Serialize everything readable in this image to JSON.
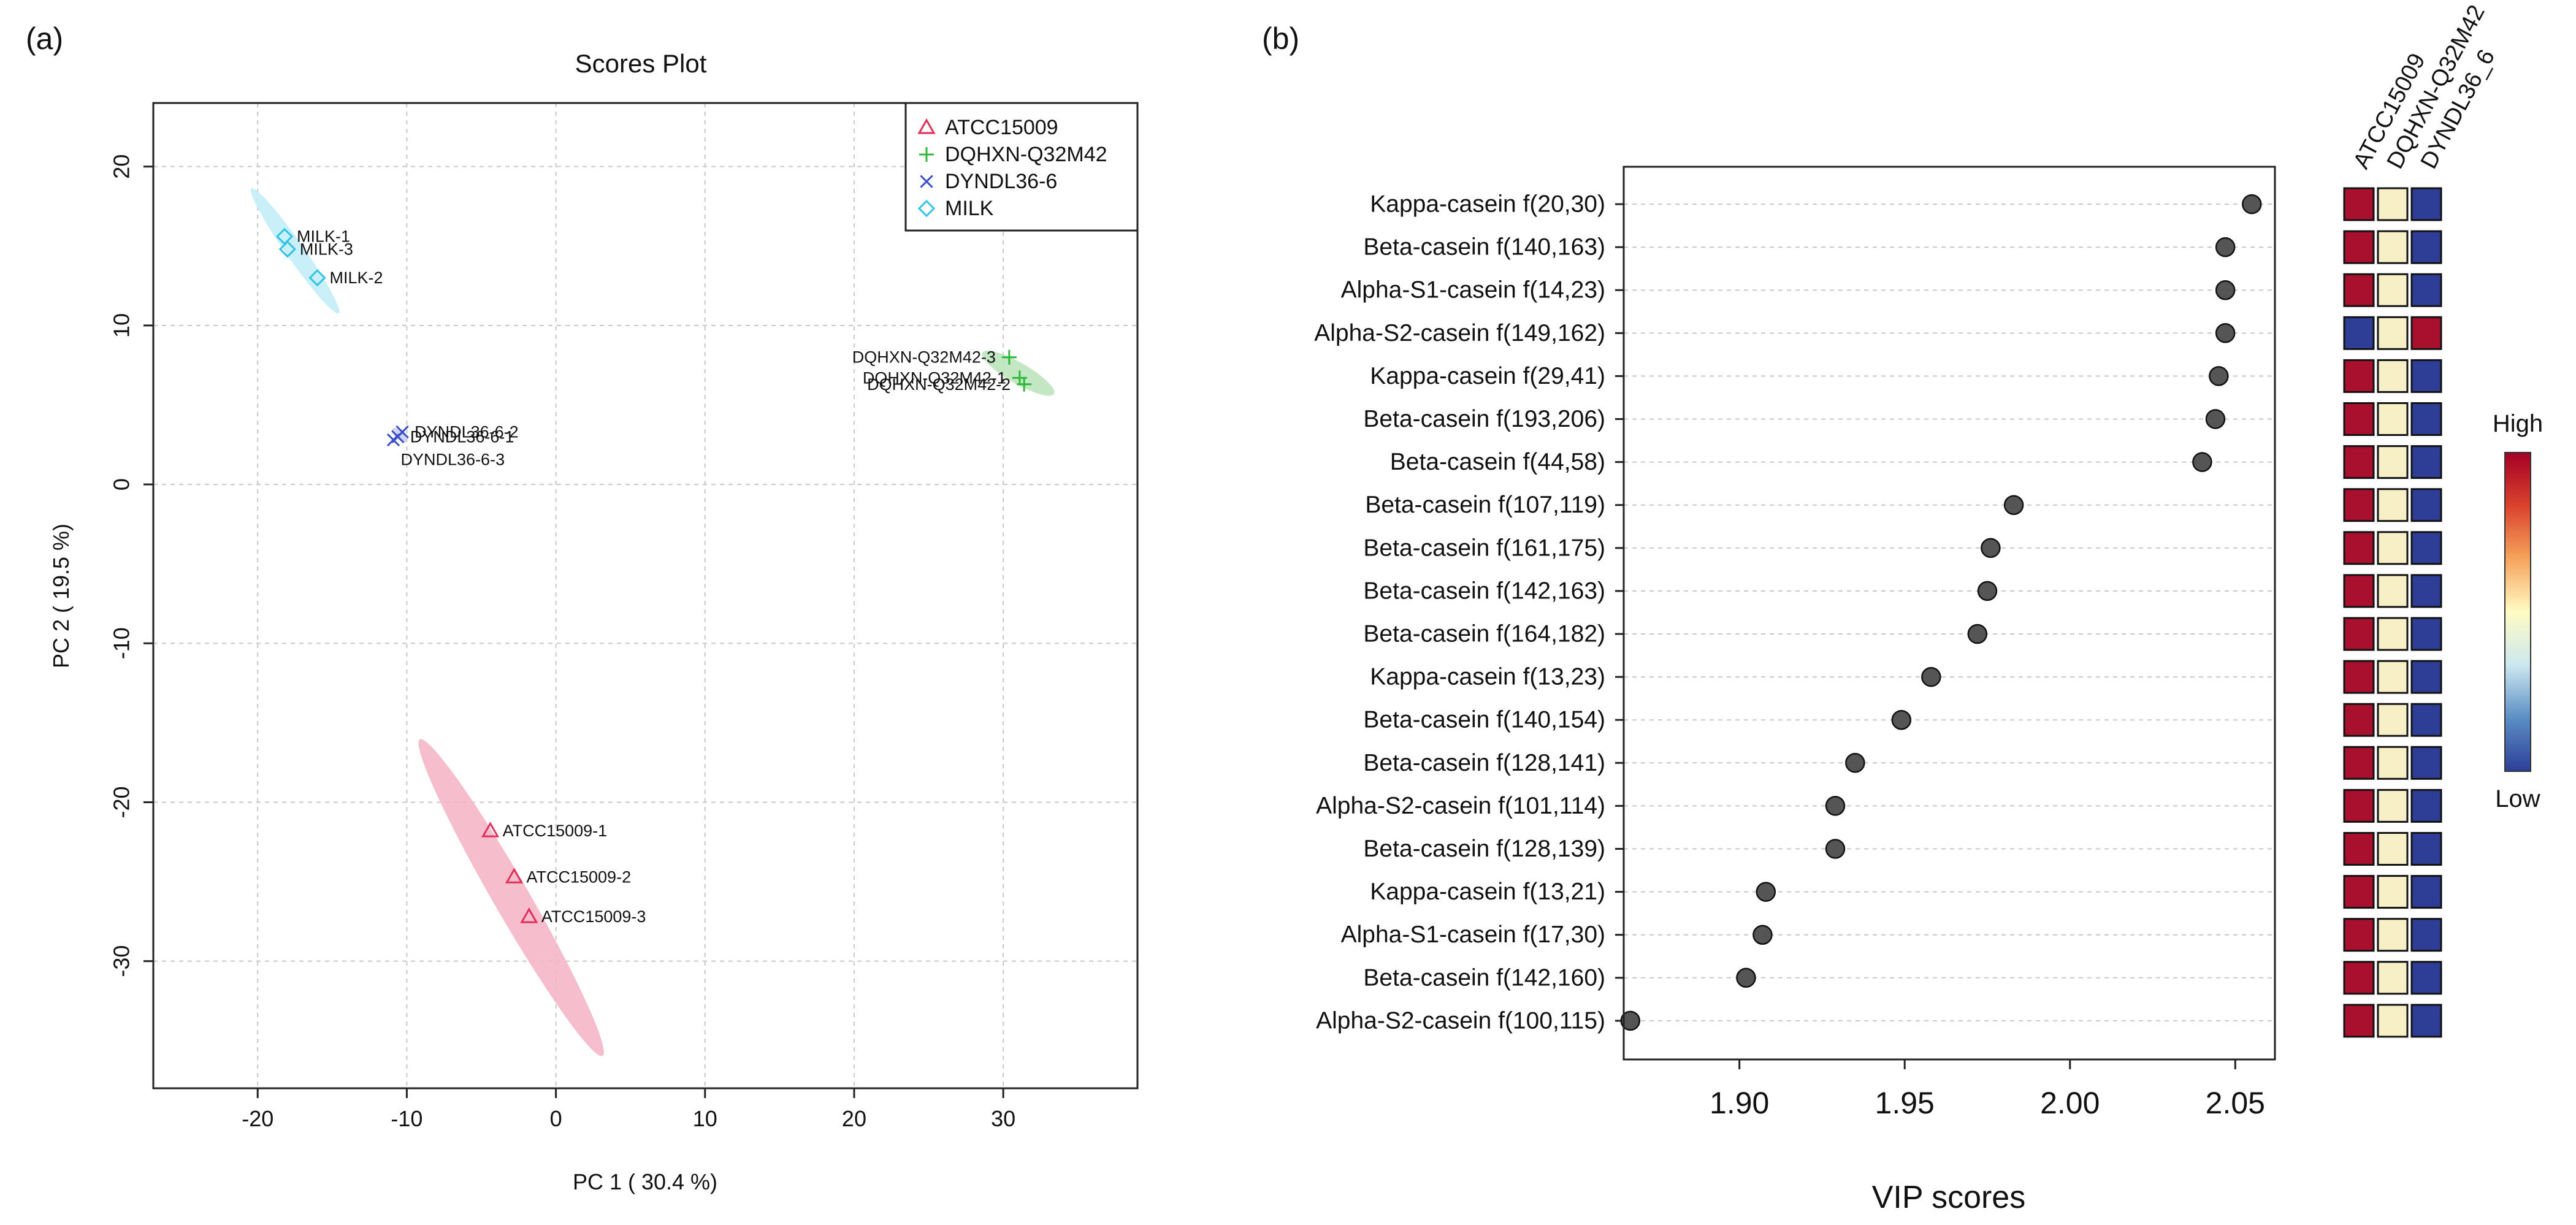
{
  "panels": {
    "a_label": "(a)",
    "b_label": "(b)"
  },
  "chart_data": [
    {
      "type": "scatter",
      "title": "Scores Plot",
      "xlabel": "PC 1 ( 30.4 %)",
      "ylabel": "PC 2 ( 19.5 %)",
      "xlim": [
        -27,
        39
      ],
      "ylim": [
        -38,
        24
      ],
      "xticks": [
        -20,
        -10,
        0,
        10,
        20,
        30
      ],
      "yticks": [
        -30,
        -20,
        -10,
        0,
        10,
        20
      ],
      "grid": true,
      "legend_position": "top-right",
      "legend": [
        {
          "label": "ATCC15009",
          "marker": "triangle",
          "color": "#e0305a"
        },
        {
          "label": "DQHXN-Q32M42",
          "marker": "plus",
          "color": "#2eb83a"
        },
        {
          "label": "DYNDL36-6",
          "marker": "x",
          "color": "#3a4fc8"
        },
        {
          "label": "MILK",
          "marker": "diamond",
          "color": "#33c3e8"
        }
      ],
      "groups": [
        {
          "name": "ATCC15009",
          "color": "#e0305a",
          "ellipse_color": "#f4b3c4",
          "ellipse": {
            "cx": -3,
            "cy": -26,
            "len": 11.5,
            "wid": 1.2,
            "angle_deg": 30
          },
          "points": [
            {
              "label": "ATCC15009-1",
              "x": -4.4,
              "y": -21.8,
              "label_side": "right"
            },
            {
              "label": "ATCC15009-2",
              "x": -2.8,
              "y": -24.7,
              "label_side": "right"
            },
            {
              "label": "ATCC15009-3",
              "x": -1.8,
              "y": -27.2,
              "label_side": "right"
            }
          ]
        },
        {
          "name": "DQHXN-Q32M42",
          "color": "#2eb83a",
          "ellipse_color": "#b9e3b8",
          "ellipse": {
            "cx": 31,
            "cy": 7,
            "len": 2.6,
            "wid": 0.7,
            "angle_deg": 60
          },
          "points": [
            {
              "label": "DQHXN-Q32M42-3",
              "x": 30.4,
              "y": 8.0,
              "label_side": "left"
            },
            {
              "label": "DQHXN-Q32M42-1",
              "x": 31.1,
              "y": 6.7,
              "label_side": "left"
            },
            {
              "label": "DQHXN-Q32M42-2",
              "x": 31.4,
              "y": 6.3,
              "label_side": "left"
            }
          ]
        },
        {
          "name": "DYNDL36-6",
          "color": "#3a4fc8",
          "ellipse_color": "#c6cdf0",
          "ellipse": {
            "cx": -10.5,
            "cy": 3.1,
            "len": 0.6,
            "wid": 0.25,
            "angle_deg": 45
          },
          "points": [
            {
              "label": "DYNDL36-6-2",
              "x": -10.3,
              "y": 3.3,
              "label_side": "right"
            },
            {
              "label": "DYNDL36-6-1",
              "x": -10.6,
              "y": 3.0,
              "label_side": "right"
            },
            {
              "label": "DYNDL36-6-3",
              "x": -10.9,
              "y": 2.8,
              "label_side": "below"
            }
          ]
        },
        {
          "name": "MILK",
          "color": "#33c3e8",
          "ellipse_color": "#c0ecf8",
          "ellipse": {
            "cx": -17.5,
            "cy": 14.7,
            "len": 4.8,
            "wid": 0.6,
            "angle_deg": 35
          },
          "points": [
            {
              "label": "MILK-1",
              "x": -18.2,
              "y": 15.6,
              "label_side": "right"
            },
            {
              "label": "MILK-3",
              "x": -18.0,
              "y": 14.8,
              "label_side": "right"
            },
            {
              "label": "MILK-2",
              "x": -16.0,
              "y": 13.0,
              "label_side": "right"
            }
          ]
        }
      ]
    },
    {
      "type": "scatter",
      "subtype": "dot-plot",
      "xlabel": "VIP scores",
      "xlim": [
        1.865,
        2.062
      ],
      "xticks": [
        1.9,
        1.95,
        2.0,
        2.05
      ],
      "xtick_labels": [
        "1.90",
        "1.95",
        "2.00",
        "2.05"
      ],
      "heatmap_columns": [
        "ATCC15009",
        "DQHXN-Q32M42",
        "DYNDL36_6"
      ],
      "scale_labels": {
        "high": "High",
        "low": "Low"
      },
      "scale_colors": [
        "#2c3f99",
        "#5b8ec4",
        "#cce8ef",
        "#fffbc4",
        "#f6a45d",
        "#d9422c",
        "#a50026"
      ],
      "heat_colors": {
        "H": "#a8102e",
        "M": "#f7efc6",
        "L": "#2e3d96"
      },
      "features": [
        {
          "label": "Kappa-casein f(20,30)",
          "vip": 2.055,
          "heat": [
            "H",
            "M",
            "L"
          ]
        },
        {
          "label": "Beta-casein f(140,163)",
          "vip": 2.047,
          "heat": [
            "H",
            "M",
            "L"
          ]
        },
        {
          "label": "Alpha-S1-casein f(14,23)",
          "vip": 2.047,
          "heat": [
            "H",
            "M",
            "L"
          ]
        },
        {
          "label": "Alpha-S2-casein f(149,162)",
          "vip": 2.047,
          "heat": [
            "L",
            "M",
            "H"
          ]
        },
        {
          "label": "Kappa-casein f(29,41)",
          "vip": 2.045,
          "heat": [
            "H",
            "M",
            "L"
          ]
        },
        {
          "label": "Beta-casein f(193,206)",
          "vip": 2.044,
          "heat": [
            "H",
            "M",
            "L"
          ]
        },
        {
          "label": "Beta-casein f(44,58)",
          "vip": 2.04,
          "heat": [
            "H",
            "M",
            "L"
          ]
        },
        {
          "label": "Beta-casein f(107,119)",
          "vip": 1.983,
          "heat": [
            "H",
            "M",
            "L"
          ]
        },
        {
          "label": "Beta-casein f(161,175)",
          "vip": 1.976,
          "heat": [
            "H",
            "M",
            "L"
          ]
        },
        {
          "label": "Beta-casein f(142,163)",
          "vip": 1.975,
          "heat": [
            "H",
            "M",
            "L"
          ]
        },
        {
          "label": "Beta-casein f(164,182)",
          "vip": 1.972,
          "heat": [
            "H",
            "M",
            "L"
          ]
        },
        {
          "label": "Kappa-casein f(13,23)",
          "vip": 1.958,
          "heat": [
            "H",
            "M",
            "L"
          ]
        },
        {
          "label": "Beta-casein f(140,154)",
          "vip": 1.949,
          "heat": [
            "H",
            "M",
            "L"
          ]
        },
        {
          "label": "Beta-casein f(128,141)",
          "vip": 1.935,
          "heat": [
            "H",
            "M",
            "L"
          ]
        },
        {
          "label": "Alpha-S2-casein f(101,114)",
          "vip": 1.929,
          "heat": [
            "H",
            "M",
            "L"
          ]
        },
        {
          "label": "Beta-casein f(128,139)",
          "vip": 1.929,
          "heat": [
            "H",
            "M",
            "L"
          ]
        },
        {
          "label": "Kappa-casein f(13,21)",
          "vip": 1.908,
          "heat": [
            "H",
            "M",
            "L"
          ]
        },
        {
          "label": "Alpha-S1-casein f(17,30)",
          "vip": 1.907,
          "heat": [
            "H",
            "M",
            "L"
          ]
        },
        {
          "label": "Beta-casein f(142,160)",
          "vip": 1.902,
          "heat": [
            "H",
            "M",
            "L"
          ]
        },
        {
          "label": "Alpha-S2-casein f(100,115)",
          "vip": 1.867,
          "heat": [
            "H",
            "M",
            "L"
          ]
        }
      ]
    }
  ]
}
